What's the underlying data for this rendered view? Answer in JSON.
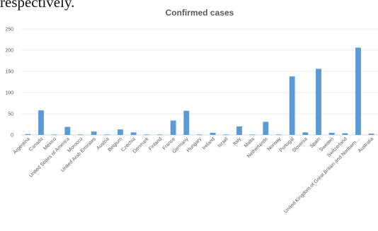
{
  "caption_text": "respectively.",
  "chart_data": {
    "type": "bar",
    "title": "Confirmed cases",
    "ylim": [
      0,
      250
    ],
    "yticks": [
      0,
      50,
      100,
      150,
      200,
      250
    ],
    "grid": true,
    "bar_color": "#5b9bd5",
    "categories": [
      "Argentina",
      "Canada",
      "Mexico",
      "United States of America",
      "Morocco",
      "United Arab Emirates",
      "Austria",
      "Belgium",
      "Czechia",
      "Denmark",
      "Finland",
      "France",
      "Germany",
      "Hungary",
      "Ireland",
      "Israel",
      "Italy",
      "Malta",
      "Netherlands",
      "Norway",
      "Portugal",
      "Slovenia",
      "Spain",
      "Sweden",
      "Switzerland",
      "United Kingdom of Great Britain and Northern…",
      "Australia"
    ],
    "values": [
      2,
      58,
      1,
      19,
      1,
      8,
      1,
      13,
      6,
      1,
      1,
      34,
      57,
      1,
      5,
      1,
      20,
      1,
      31,
      1,
      138,
      6,
      156,
      5,
      4,
      206,
      3
    ]
  }
}
